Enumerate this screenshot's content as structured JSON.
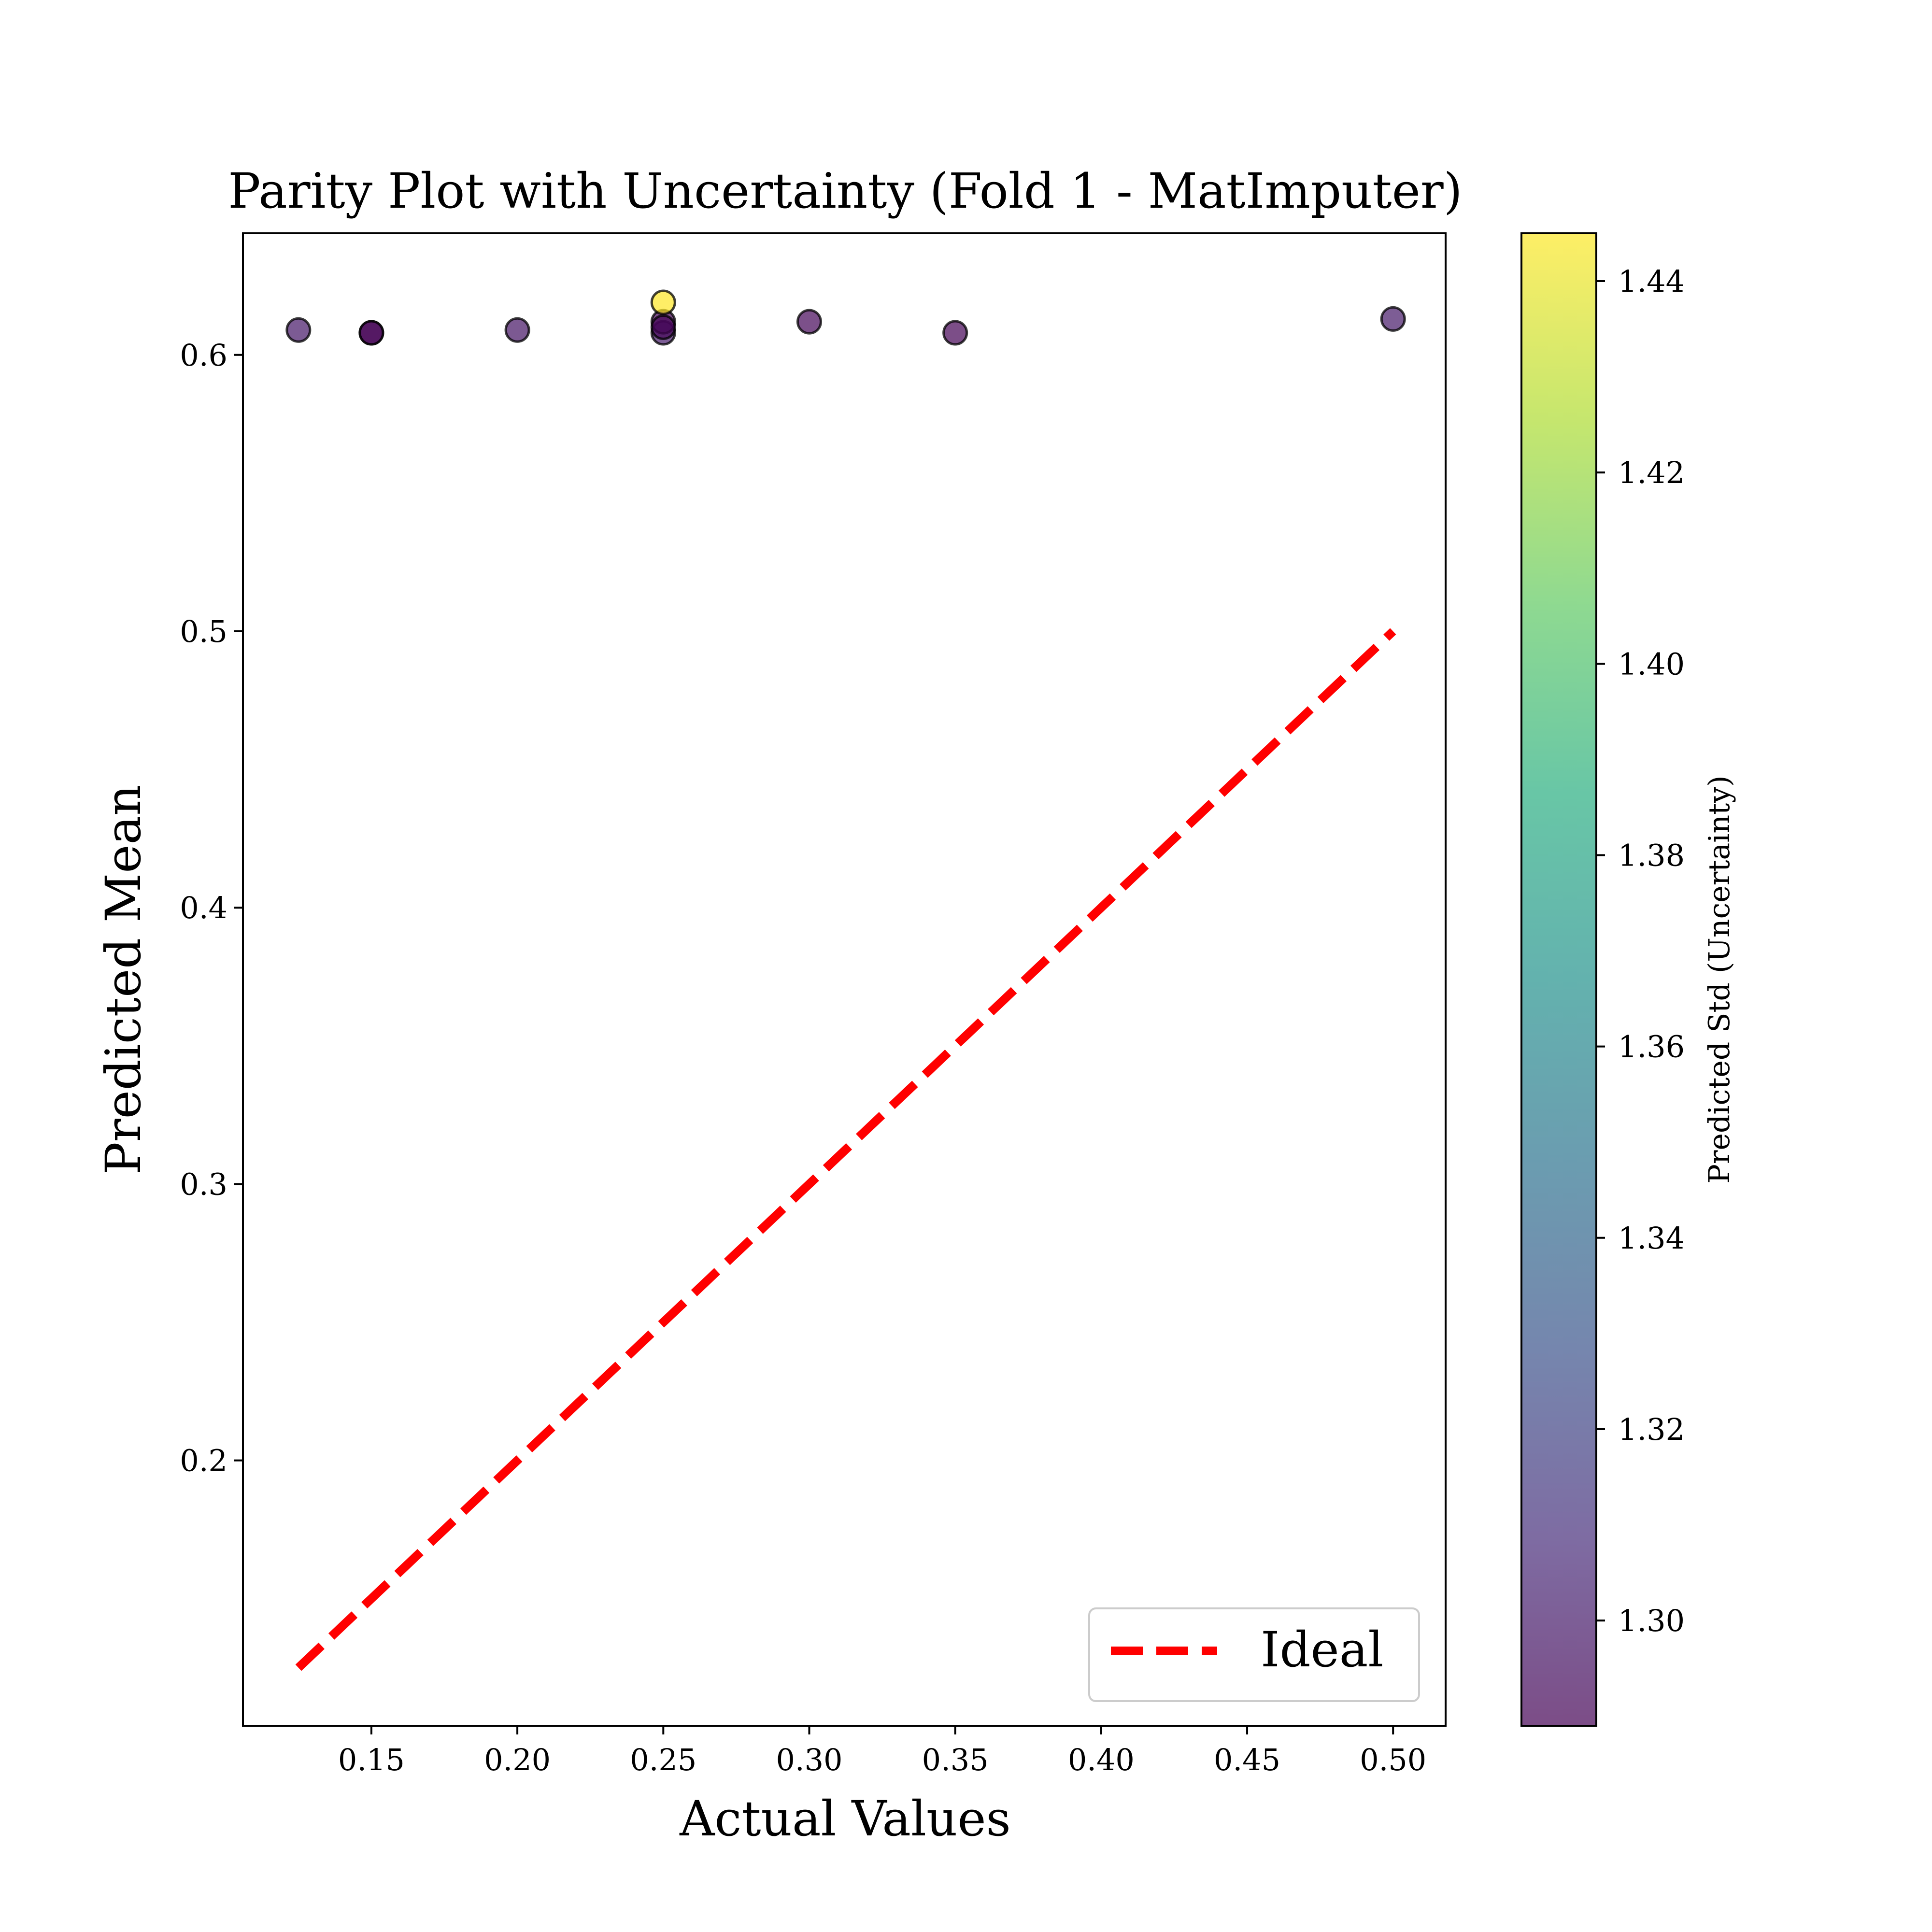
{
  "chart_data": {
    "type": "scatter",
    "title": "Parity Plot with Uncertainty (Fold 1 - MatImputer)",
    "xlabel": "Actual Values",
    "ylabel": "Predicted Mean",
    "xlim": [
      0.106,
      0.518
    ],
    "ylim": [
      0.104,
      0.644
    ],
    "xticks": [
      0.15,
      0.2,
      0.25,
      0.3,
      0.35,
      0.4,
      0.45,
      0.5
    ],
    "xtick_labels": [
      "0.15",
      "0.20",
      "0.25",
      "0.30",
      "0.35",
      "0.40",
      "0.45",
      "0.50"
    ],
    "yticks": [
      0.2,
      0.3,
      0.4,
      0.5,
      0.6
    ],
    "ytick_labels": [
      "0.2",
      "0.3",
      "0.4",
      "0.5",
      "0.6"
    ],
    "grid": false,
    "points": [
      {
        "x": 0.125,
        "y": 0.609,
        "std": 1.298
      },
      {
        "x": 0.15,
        "y": 0.608,
        "std": 1.289
      },
      {
        "x": 0.15,
        "y": 0.608,
        "std": 1.29
      },
      {
        "x": 0.2,
        "y": 0.609,
        "std": 1.297
      },
      {
        "x": 0.25,
        "y": 0.608,
        "std": 1.3
      },
      {
        "x": 0.25,
        "y": 0.612,
        "std": 1.29
      },
      {
        "x": 0.25,
        "y": 0.61,
        "std": 1.291
      },
      {
        "x": 0.25,
        "y": 0.619,
        "std": 1.445
      },
      {
        "x": 0.3,
        "y": 0.612,
        "std": 1.291
      },
      {
        "x": 0.35,
        "y": 0.608,
        "std": 1.29
      },
      {
        "x": 0.5,
        "y": 0.613,
        "std": 1.299
      }
    ],
    "ideal_line": {
      "name": "Ideal",
      "x": [
        0.125,
        0.5
      ],
      "y": [
        0.125,
        0.5
      ],
      "color": "#ff0000",
      "style": "dashed"
    },
    "legend": {
      "position": "lower-right",
      "entries": [
        "Ideal"
      ]
    },
    "colorbar": {
      "label": "Predicted Std (Uncertainty)",
      "colormap": "viridis",
      "range": [
        1.289,
        1.445
      ],
      "ticks": [
        1.3,
        1.32,
        1.34,
        1.36,
        1.38,
        1.4,
        1.42,
        1.44
      ],
      "tick_labels": [
        "1.30",
        "1.32",
        "1.34",
        "1.36",
        "1.38",
        "1.40",
        "1.42",
        "1.44"
      ],
      "alpha": 0.7
    },
    "marker_alpha": 0.7
  }
}
